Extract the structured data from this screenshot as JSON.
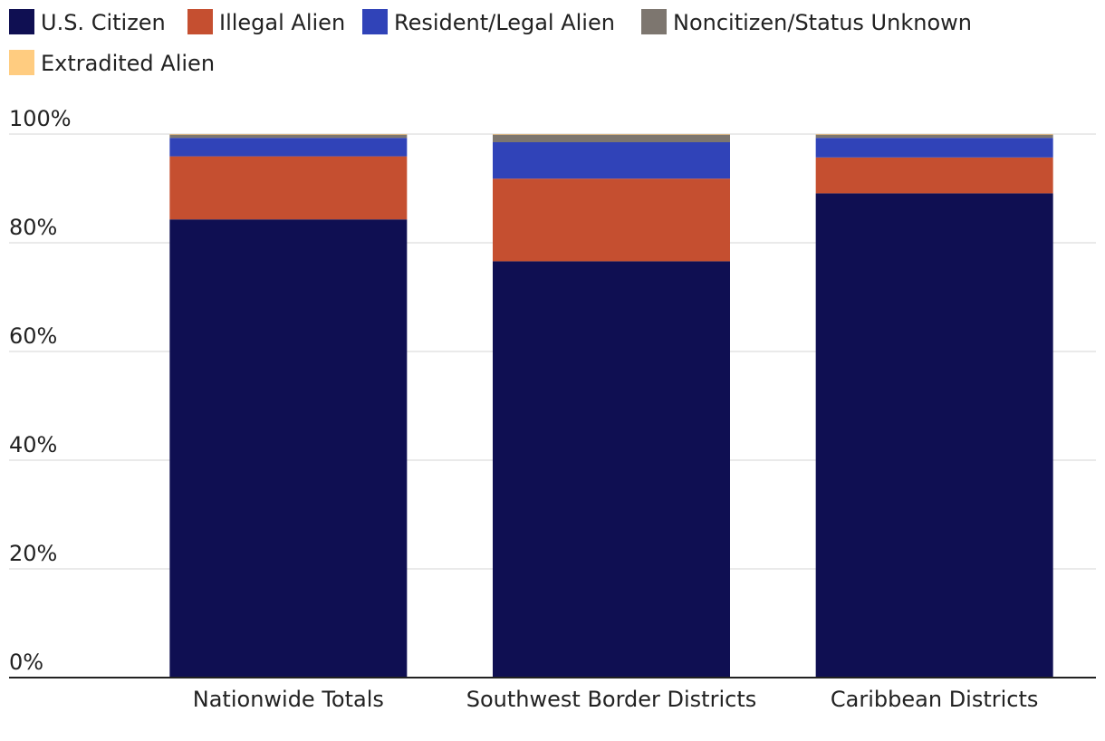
{
  "chart_data": {
    "type": "bar",
    "stacked": true,
    "title": "",
    "xlabel": "",
    "ylabel": "",
    "categories": [
      "Nationwide Totals",
      "Southwest Border Districts",
      "Caribbean Districts"
    ],
    "series": [
      {
        "name": "U.S. Citizen",
        "color": "#0f0f52",
        "values": [
          84.3,
          76.6,
          89.1
        ]
      },
      {
        "name": "Illegal Alien",
        "color": "#c54f30",
        "values": [
          11.6,
          15.2,
          6.6
        ]
      },
      {
        "name": "Resident/Legal Alien",
        "color": "#3043b8",
        "values": [
          3.4,
          6.7,
          3.6
        ]
      },
      {
        "name": "Noncitizen/Status Unknown",
        "color": "#7d766f",
        "values": [
          0.6,
          1.4,
          0.6
        ]
      },
      {
        "name": "Extradited Alien",
        "color": "#ffcc80",
        "values": [
          0.1,
          0.1,
          0.1
        ]
      }
    ],
    "ylim": [
      0,
      100
    ],
    "yticks": [
      0,
      20,
      40,
      60,
      80,
      100
    ],
    "ytick_labels": [
      "0%",
      "20%",
      "40%",
      "60%",
      "80%",
      "100%"
    ],
    "grid": true,
    "gridline_color": "#e3e3e3",
    "baseline_color": "#222222",
    "legend_position": "top-left"
  }
}
